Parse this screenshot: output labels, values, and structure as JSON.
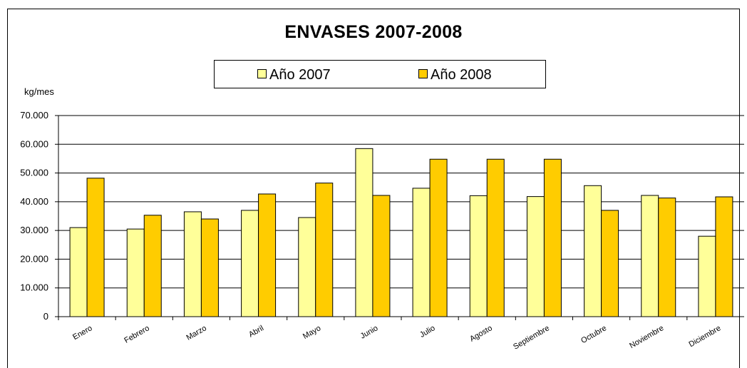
{
  "chart_data": {
    "type": "bar",
    "title": "ENVASES 2007-2008",
    "ylabel": "kg/mes",
    "xlabel": "",
    "ylim": [
      0,
      70000
    ],
    "yticks": [
      0,
      10000,
      20000,
      30000,
      40000,
      50000,
      60000,
      70000
    ],
    "ytick_labels": [
      "0",
      "10.000",
      "20.000",
      "30.000",
      "40.000",
      "50.000",
      "60.000",
      "70.000"
    ],
    "grid": true,
    "legend_position": "top-center",
    "categories": [
      "Enero",
      "Febrero",
      "Marzo",
      "Abril",
      "Mayo",
      "Junio",
      "Julio",
      "Agosto",
      "Septiembre",
      "Octubre",
      "Noviembre",
      "Diciembre"
    ],
    "series": [
      {
        "name": "Año 2007",
        "color": "#FFFF99",
        "values": [
          31000,
          30500,
          36500,
          37000,
          34500,
          58500,
          44700,
          42100,
          41800,
          45600,
          42200,
          28000
        ]
      },
      {
        "name": "Año 2008",
        "color": "#FFCC00",
        "values": [
          48200,
          35300,
          34000,
          42700,
          46500,
          42200,
          54800,
          54800,
          54800,
          37000,
          41300,
          41700
        ]
      }
    ]
  }
}
